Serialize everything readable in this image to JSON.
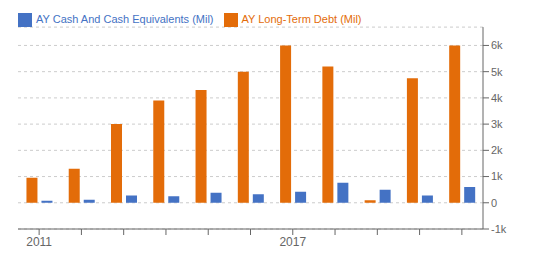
{
  "chart_data": {
    "type": "bar",
    "categories": [
      "2011",
      null,
      null,
      null,
      null,
      null,
      "2017",
      null,
      null,
      null,
      null
    ],
    "series": [
      {
        "name": "AY Long-Term Debt (Mil)",
        "color": "#e36c09",
        "values": [
          950,
          1300,
          3000,
          3900,
          4300,
          5000,
          6000,
          5200,
          100,
          4750,
          6000
        ]
      },
      {
        "name": "AY Cash And Cash Equivalents (Mil)",
        "color": "#4472c4",
        "values": [
          80,
          120,
          280,
          250,
          380,
          330,
          420,
          760,
          500,
          280,
          600
        ]
      }
    ],
    "ylim": [
      -1000,
      6700
    ],
    "yticks": [
      {
        "value": -1000,
        "label": "-1k"
      },
      0,
      {
        "value": 1000,
        "label": "1k"
      },
      {
        "value": 2000,
        "label": "2k"
      },
      {
        "value": 3000,
        "label": "3k"
      },
      {
        "value": 4000,
        "label": "4k"
      },
      {
        "value": 5000,
        "label": "5k"
      },
      {
        "value": 6000,
        "label": "6k"
      }
    ],
    "grid": true,
    "legend": "upper left"
  }
}
